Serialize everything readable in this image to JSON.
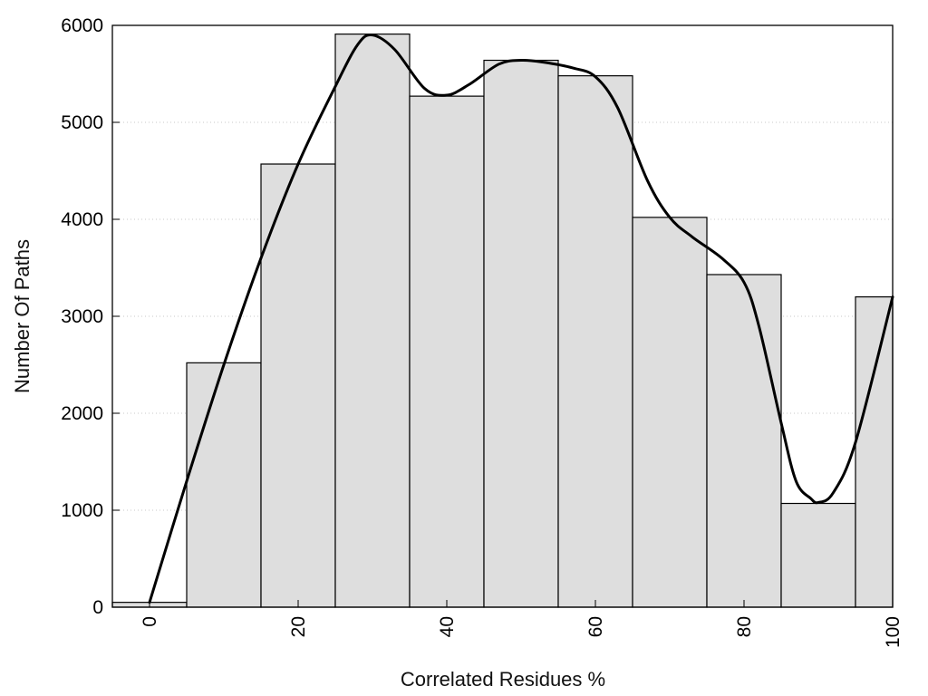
{
  "chart_data": {
    "type": "bar",
    "title": "",
    "xlabel": "Correlated Residues %",
    "ylabel": "Number Of Paths",
    "xlim": [
      -5,
      100
    ],
    "ylim": [
      0,
      6000
    ],
    "x_ticks": [
      0,
      20,
      40,
      60,
      80,
      100
    ],
    "y_ticks": [
      0,
      1000,
      2000,
      3000,
      4000,
      5000,
      6000
    ],
    "grid": "horizontal dotted",
    "bin_width": 10,
    "categories": [
      0,
      10,
      20,
      30,
      40,
      50,
      60,
      70,
      80,
      90,
      100
    ],
    "values": [
      50,
      2520,
      4570,
      5910,
      5270,
      5640,
      5480,
      4020,
      3430,
      1070,
      3200
    ],
    "curve": {
      "x": [
        0,
        5,
        10,
        15,
        20,
        25,
        28,
        30,
        33,
        37,
        40,
        43,
        47,
        50,
        53,
        57,
        60,
        63,
        67,
        70,
        73,
        77,
        80,
        82,
        85,
        87,
        89,
        90,
        92,
        95,
        100
      ],
      "y": [
        50,
        1300,
        2500,
        3600,
        4570,
        5370,
        5800,
        5900,
        5750,
        5350,
        5280,
        5390,
        5600,
        5640,
        5620,
        5560,
        5470,
        5150,
        4400,
        4020,
        3820,
        3600,
        3350,
        2900,
        1900,
        1300,
        1120,
        1080,
        1180,
        1700,
        3200
      ]
    },
    "colors": {
      "bar_fill": "#dedede",
      "bar_stroke": "#000000",
      "curve": "#000000"
    }
  }
}
